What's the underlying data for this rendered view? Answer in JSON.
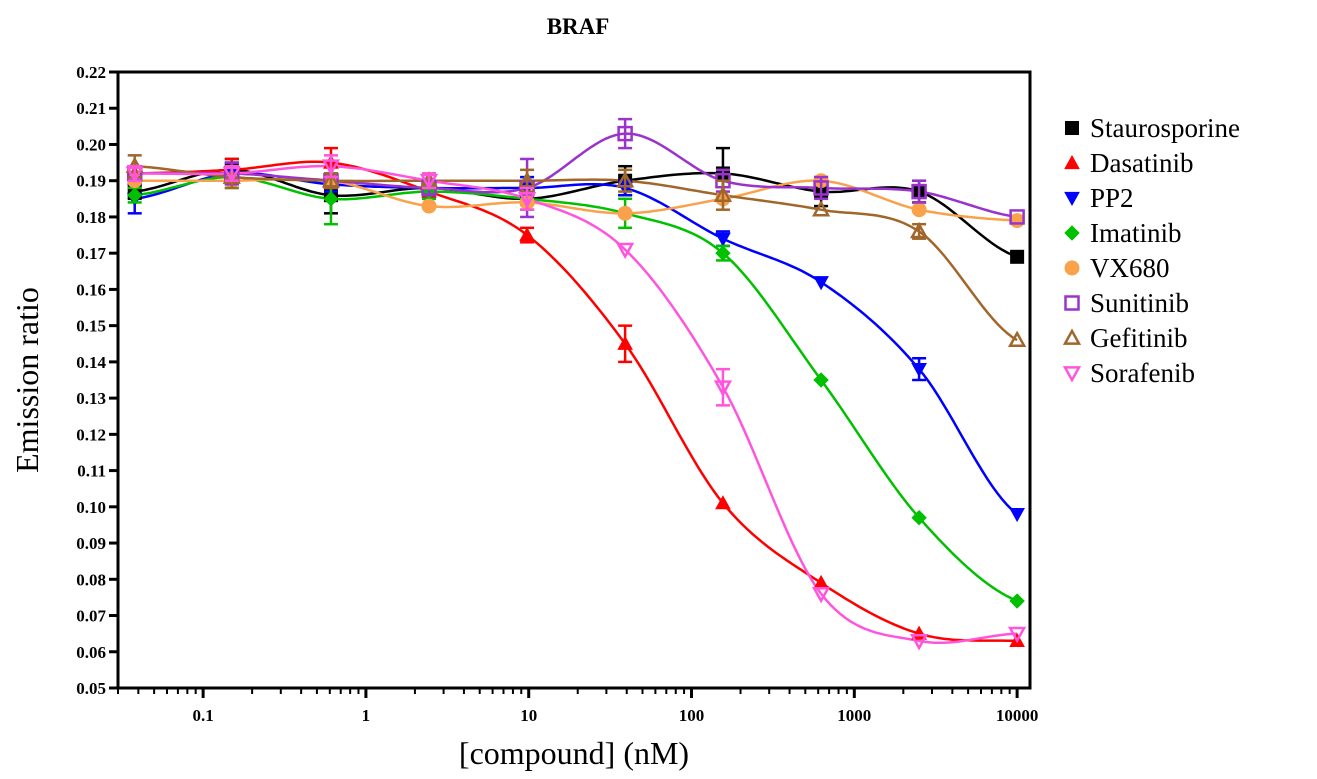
{
  "chart_data": {
    "type": "scatter",
    "title": "BRAF",
    "xlabel": "[compound] (nM)",
    "ylabel": "Emission ratio",
    "xscale": "log",
    "xlim": [
      0.03,
      12000
    ],
    "ylim": [
      0.05,
      0.22
    ],
    "grid": false,
    "legend_position": "right",
    "xticks": [
      0.1,
      1,
      10,
      100,
      1000,
      10000
    ],
    "xtick_labels": [
      "0.1",
      "1",
      "10",
      "100",
      "1000",
      "10000"
    ],
    "yticks": [
      0.05,
      0.06,
      0.07,
      0.08,
      0.09,
      0.1,
      0.11,
      0.12,
      0.13,
      0.14,
      0.15,
      0.16,
      0.17,
      0.18,
      0.19,
      0.2,
      0.21,
      0.22
    ],
    "ytick_labels": [
      "0.05",
      "0.06",
      "0.07",
      "0.08",
      "0.09",
      "0.10",
      "0.11",
      "0.12",
      "0.13",
      "0.14",
      "0.15",
      "0.16",
      "0.17",
      "0.18",
      "0.19",
      "0.20",
      "0.21",
      "0.22"
    ],
    "x": [
      0.038,
      0.15,
      0.61,
      2.44,
      9.77,
      39.1,
      156,
      625,
      2500,
      10000
    ],
    "series": [
      {
        "name": "Staurosporine",
        "marker": "square",
        "color": "#000000",
        "values": [
          0.187,
          0.193,
          0.186,
          0.188,
          0.185,
          0.19,
          0.192,
          0.187,
          0.187,
          0.169
        ],
        "errors": [
          0.002,
          0.003,
          0.005,
          0.002,
          0.003,
          0.004,
          0.007,
          0.004,
          0.003,
          0.0
        ]
      },
      {
        "name": "Dasatinib",
        "marker": "triangle-up",
        "color": "#ff0000",
        "values": [
          0.192,
          0.193,
          0.195,
          0.187,
          0.175,
          0.145,
          0.101,
          0.079,
          0.065,
          0.063
        ],
        "errors": [
          0.002,
          0.003,
          0.004,
          0.002,
          0.002,
          0.005,
          0.0,
          0.0,
          0.0,
          0.0
        ]
      },
      {
        "name": "PP2",
        "marker": "triangle-down",
        "color": "#0000ff",
        "values": [
          0.185,
          0.192,
          0.189,
          0.188,
          0.188,
          0.188,
          0.174,
          0.162,
          0.138,
          0.098
        ],
        "errors": [
          0.004,
          0.003,
          0.002,
          0.002,
          0.003,
          0.002,
          0.002,
          0.0,
          0.003,
          0.0
        ]
      },
      {
        "name": "Imatinib",
        "marker": "diamond",
        "color": "#00c000",
        "values": [
          0.186,
          0.191,
          0.185,
          0.187,
          0.185,
          0.181,
          0.17,
          0.135,
          0.097,
          0.074
        ],
        "errors": [
          0.002,
          0.003,
          0.007,
          0.002,
          0.003,
          0.004,
          0.002,
          0.0,
          0.0,
          0.0
        ]
      },
      {
        "name": "VX680",
        "marker": "circle",
        "color": "#f9a24b",
        "values": [
          0.19,
          0.19,
          0.19,
          0.183,
          0.184,
          0.181,
          0.185,
          0.19,
          0.182,
          0.179
        ],
        "errors": [
          0.0,
          0.0,
          0.0,
          0.0,
          0.0,
          0.0,
          0.0,
          0.0,
          0.0,
          0.0
        ]
      },
      {
        "name": "Sunitinib",
        "marker": "square-open",
        "color": "#9933cc",
        "values": [
          0.192,
          0.192,
          0.19,
          0.188,
          0.188,
          0.203,
          0.19,
          0.188,
          0.187,
          0.18
        ],
        "errors": [
          0.002,
          0.003,
          0.002,
          0.002,
          0.008,
          0.004,
          0.003,
          0.003,
          0.003,
          0.0
        ]
      },
      {
        "name": "Gefitinib",
        "marker": "triangle-up-open",
        "color": "#a0662a",
        "values": [
          0.194,
          0.191,
          0.19,
          0.19,
          0.19,
          0.19,
          0.186,
          0.182,
          0.176,
          0.146
        ],
        "errors": [
          0.003,
          0.003,
          0.002,
          0.002,
          0.003,
          0.003,
          0.004,
          0.0,
          0.002,
          0.0
        ]
      },
      {
        "name": "Sorafenib",
        "marker": "triangle-down-open",
        "color": "#ff55dd",
        "values": [
          0.192,
          0.192,
          0.194,
          0.19,
          0.185,
          0.171,
          0.133,
          0.076,
          0.063,
          0.065
        ],
        "errors": [
          0.002,
          0.002,
          0.003,
          0.002,
          0.003,
          0.0,
          0.005,
          0.0,
          0.0,
          0.0
        ]
      }
    ]
  }
}
